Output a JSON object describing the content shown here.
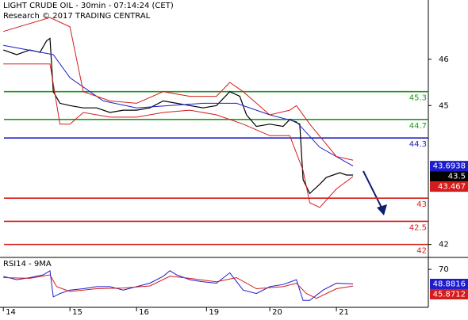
{
  "chart_data": [
    {
      "type": "line",
      "title": "LIGHT CRUDE OIL - 30min - 07:14:24 (CET)",
      "subtitle": "Research © 2017 TRADING CENTRAL",
      "xlim": [
        -1,
        127.6
      ],
      "ylim": [
        41.72,
        47.28
      ],
      "yticks": [
        46,
        45,
        42
      ],
      "levels": [
        {
          "value": 45.3,
          "color": "#1a9a1a"
        },
        {
          "value": 44.7,
          "color": "#1a9a1a"
        },
        {
          "value": 44.3,
          "color": "#1c1ccc"
        },
        {
          "value": 43,
          "color": "#d41c1c"
        },
        {
          "value": 42.5,
          "color": "#d41c1c"
        },
        {
          "value": 42,
          "color": "#d41c1c"
        }
      ],
      "series": [
        {
          "color": "#000000",
          "last_value_box": true,
          "x": [
            0,
            4,
            8,
            11,
            13,
            14,
            15,
            17,
            20,
            24,
            28,
            32,
            36,
            40,
            44,
            48,
            52,
            56,
            60,
            64,
            68,
            71,
            73,
            76,
            80,
            84,
            86,
            89,
            90,
            92,
            95,
            97,
            99,
            101,
            103,
            105
          ],
          "values": [
            46.2,
            46.1,
            46.2,
            46.15,
            46.4,
            46.45,
            45.3,
            45.05,
            45.0,
            44.95,
            44.95,
            44.85,
            44.9,
            44.9,
            44.95,
            45.1,
            45.05,
            45.0,
            44.95,
            45.0,
            45.3,
            45.2,
            44.8,
            44.55,
            44.6,
            44.55,
            44.7,
            44.6,
            43.4,
            43.1,
            43.3,
            43.45,
            43.5,
            43.55,
            43.5,
            43.5
          ]
        },
        {
          "color": "#1c1ccc",
          "last_value_box": true,
          "x": [
            0,
            15,
            20,
            30,
            40,
            50,
            60,
            70,
            80,
            88,
            95,
            105
          ],
          "values": [
            46.3,
            46.1,
            45.6,
            45.1,
            44.95,
            45.0,
            45.05,
            45.05,
            44.8,
            44.65,
            44.1,
            43.6938
          ]
        },
        {
          "color": "#d41c1c",
          "last_value_box": false,
          "x": [
            0,
            14,
            20,
            24,
            32,
            40,
            48,
            56,
            64,
            68,
            72,
            80,
            86,
            88,
            92,
            100,
            105
          ],
          "values": [
            46.6,
            46.9,
            46.7,
            45.3,
            45.1,
            45.05,
            45.3,
            45.2,
            45.2,
            45.5,
            45.3,
            44.8,
            44.9,
            45.0,
            44.6,
            43.9,
            43.82
          ]
        },
        {
          "color": "#d41c1c",
          "last_value_box": true,
          "x": [
            0,
            14,
            17,
            20,
            24,
            32,
            40,
            48,
            56,
            64,
            72,
            80,
            86,
            90,
            92,
            95,
            100,
            105
          ],
          "values": [
            45.9,
            45.9,
            44.6,
            44.6,
            44.85,
            44.75,
            44.75,
            44.85,
            44.9,
            44.8,
            44.6,
            44.35,
            44.35,
            43.6,
            42.9,
            42.8,
            43.2,
            43.467
          ]
        }
      ]
    },
    {
      "type": "line",
      "title": "RSI14 - 9MA",
      "xlim": [
        -1,
        127.6
      ],
      "ylim": [
        15,
        85
      ],
      "yticks": [
        70
      ],
      "xticks": [
        {
          "value": 0,
          "label": "14"
        },
        {
          "value": 20,
          "label": "15"
        },
        {
          "value": 40,
          "label": "16"
        },
        {
          "value": 61,
          "label": "19"
        },
        {
          "value": 80,
          "label": "20"
        },
        {
          "value": 100,
          "label": "21"
        }
      ],
      "series": [
        {
          "color": "#1c1ccc",
          "last_value_box": true,
          "x": [
            0,
            4,
            8,
            12,
            14,
            15,
            17,
            20,
            24,
            28,
            32,
            36,
            40,
            44,
            48,
            50,
            52,
            56,
            60,
            64,
            68,
            72,
            76,
            80,
            84,
            88,
            90,
            92,
            96,
            100,
            105
          ],
          "values": [
            60,
            55,
            58,
            62,
            68,
            30,
            35,
            40,
            42,
            45,
            45,
            40,
            45,
            50,
            60,
            68,
            62,
            55,
            52,
            50,
            65,
            40,
            35,
            45,
            48,
            55,
            25,
            25,
            40,
            50,
            48.8816
          ]
        },
        {
          "color": "#d41c1c",
          "last_value_box": true,
          "x": [
            0,
            8,
            14,
            16,
            20,
            28,
            36,
            44,
            50,
            56,
            64,
            70,
            76,
            84,
            88,
            91,
            94,
            100,
            105
          ],
          "values": [
            58,
            57,
            62,
            45,
            38,
            42,
            43,
            46,
            60,
            57,
            52,
            58,
            42,
            45,
            50,
            35,
            28,
            42,
            45.8712
          ]
        }
      ]
    }
  ]
}
